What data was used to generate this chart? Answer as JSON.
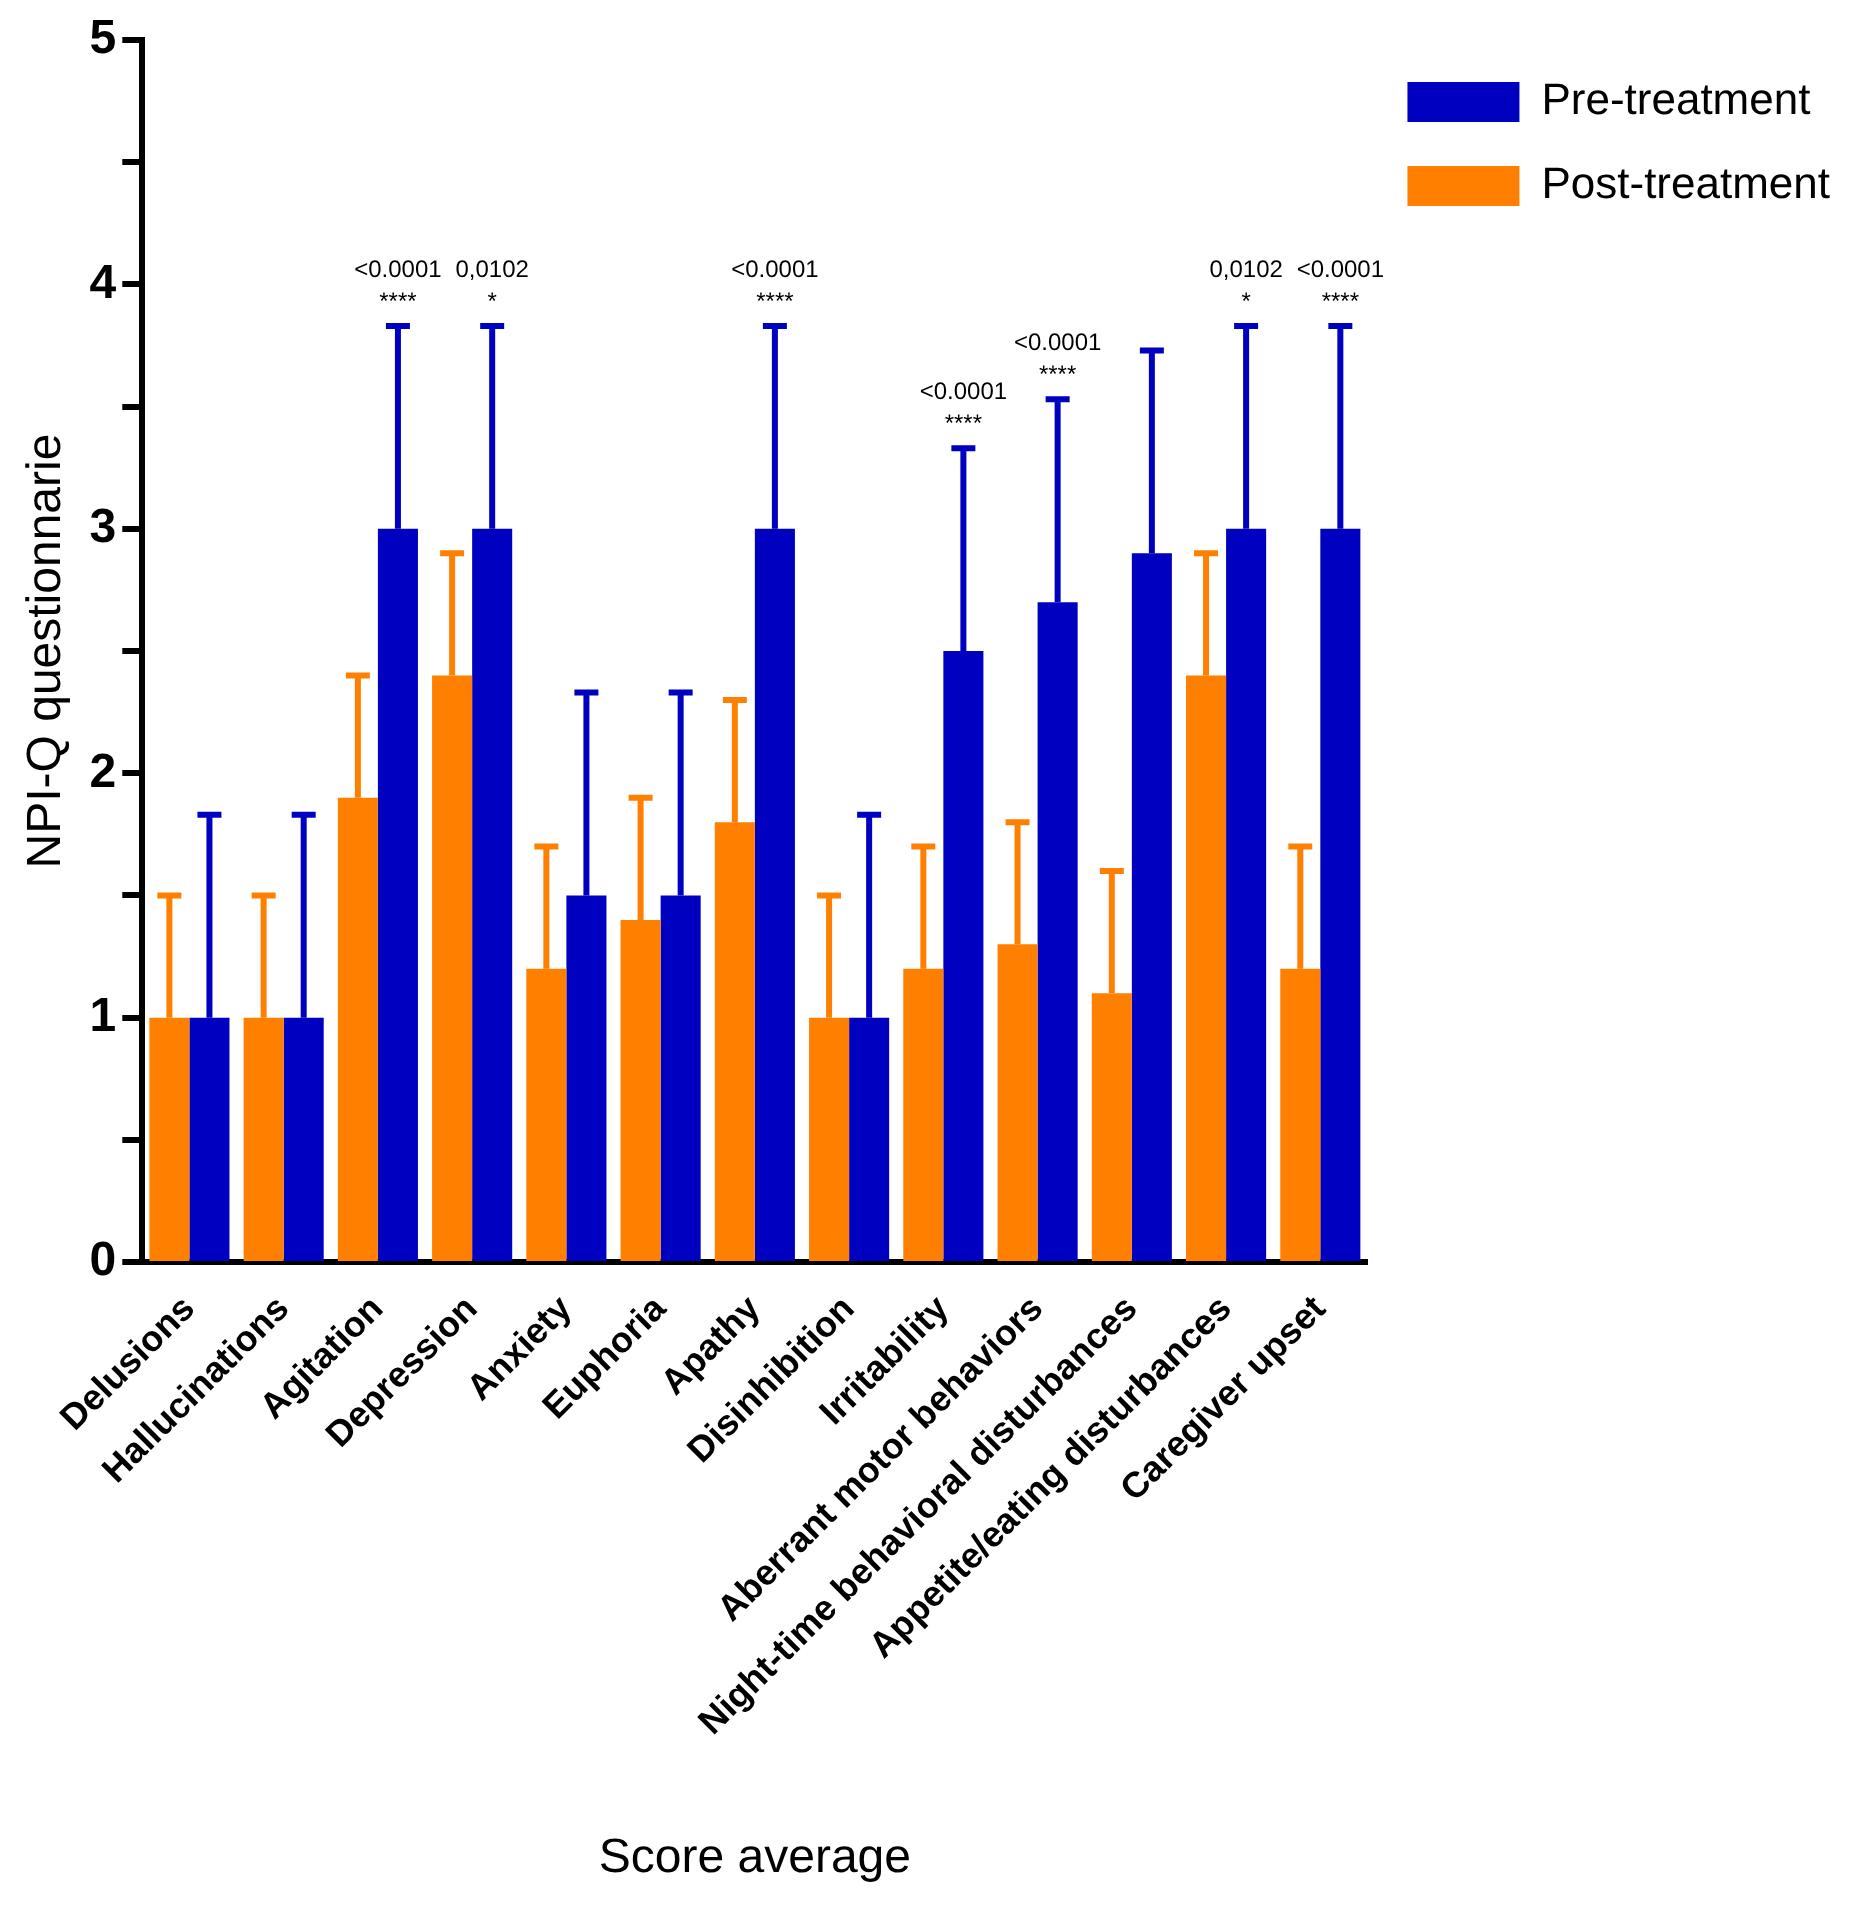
{
  "chart_data": {
    "type": "bar",
    "xlabel": "Score average",
    "ylabel": "NPI-Q questionnarie",
    "categories": [
      "Delusions",
      "Hallucinations",
      "Agitation",
      "Depression",
      "Anxiety",
      "Euphoria",
      "Apathy",
      "Disinhibition",
      "Irritability",
      "Aberrant motor behaviors",
      "Night-time behavioral disturbances",
      "Appetite/eating disturbances",
      "Caregiver upset"
    ],
    "series": [
      {
        "name": "Post-treatment",
        "color": "#ff8000",
        "values": [
          1,
          1,
          1.9,
          2.4,
          1.2,
          1.4,
          1.8,
          1,
          1.2,
          1.3,
          1.1,
          2.4,
          1.2
        ],
        "errors": [
          [
            1,
            1.5
          ],
          [
            1,
            1.5
          ],
          [
            1.9,
            2.4
          ],
          [
            2.4,
            2.9
          ],
          [
            1.2,
            1.7
          ],
          [
            1.4,
            1.9
          ],
          [
            1.8,
            2.3
          ],
          [
            1,
            1.5
          ],
          [
            1.2,
            1.7
          ],
          [
            1.3,
            1.8
          ],
          [
            1.1,
            1.6
          ],
          [
            2.4,
            2.9
          ],
          [
            1.2,
            1.7
          ]
        ]
      },
      {
        "name": "Pre-treatment",
        "color": "#0000c0",
        "values": [
          1,
          1,
          3,
          3,
          1.5,
          1.5,
          3,
          1,
          2.5,
          2.7,
          2.9,
          3,
          3
        ],
        "errors": [
          [
            1,
            1.83
          ],
          [
            1,
            1.83
          ],
          [
            3,
            3.83
          ],
          [
            3,
            3.83
          ],
          [
            1.5,
            2.33
          ],
          [
            1.5,
            2.33
          ],
          [
            3,
            3.83
          ],
          [
            1,
            1.83
          ],
          [
            2.5,
            3.33
          ],
          [
            2.7,
            3.53
          ],
          [
            2.9,
            3.73
          ],
          [
            3,
            3.83
          ],
          [
            3,
            3.83
          ]
        ]
      }
    ],
    "ylim": [
      0,
      5
    ],
    "yticks": [
      0,
      {
        "value": 0.5,
        "label": null
      },
      1,
      {
        "value": 1.5,
        "label": null
      },
      2,
      {
        "value": 2.5,
        "label": null
      },
      3,
      {
        "value": 3.5,
        "label": null
      },
      4,
      {
        "value": 4.5,
        "label": null
      },
      5
    ],
    "grid": false,
    "legend": "top right",
    "annotations": [
      "<0.0001",
      "****",
      "0,0102",
      "*",
      "<0.0001",
      "****",
      "<0.0001",
      "****",
      "<0.0001",
      "****",
      "0,0102",
      "*",
      "<0.0001",
      "****"
    ]
  }
}
